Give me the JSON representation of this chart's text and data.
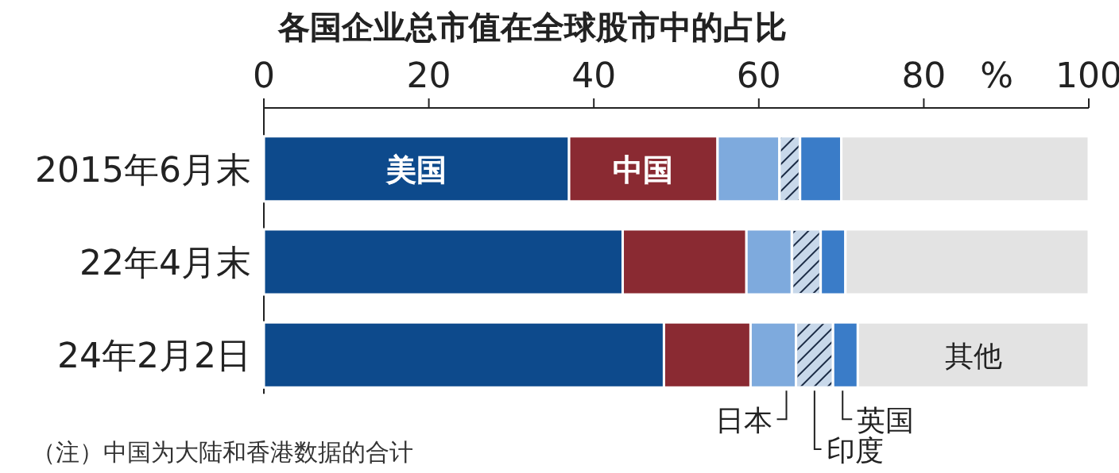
{
  "chart_data": {
    "type": "bar",
    "orientation": "horizontal",
    "stacked": true,
    "title": "各国企业总市值在全球股市中的占比",
    "xlabel": "%",
    "categories": [
      "2015年6月末",
      "22年4月末",
      "24年2月2日"
    ],
    "series": [
      {
        "name": "美国",
        "color": "#0d4a8c",
        "values": [
          37,
          43.5,
          48.5
        ]
      },
      {
        "name": "中国",
        "color": "#8a2a32",
        "values": [
          18,
          15,
          10.5
        ]
      },
      {
        "name": "日本",
        "color": "#7eaadd",
        "values": [
          7.5,
          5.5,
          5.5
        ]
      },
      {
        "name": "印度",
        "color": "#c8d8ea",
        "values": [
          2.5,
          3.5,
          4.5
        ]
      },
      {
        "name": "英国",
        "color": "#3a7cc8",
        "values": [
          5,
          3,
          3
        ]
      },
      {
        "name": "其他",
        "color": "#e3e3e3",
        "values": [
          30,
          29.5,
          28
        ]
      }
    ],
    "xlim": [
      0,
      100
    ],
    "xticks": [
      0,
      20,
      40,
      60,
      80,
      100
    ],
    "annotations": [
      "（注）中国为大陆和香港数据的合计"
    ]
  }
}
